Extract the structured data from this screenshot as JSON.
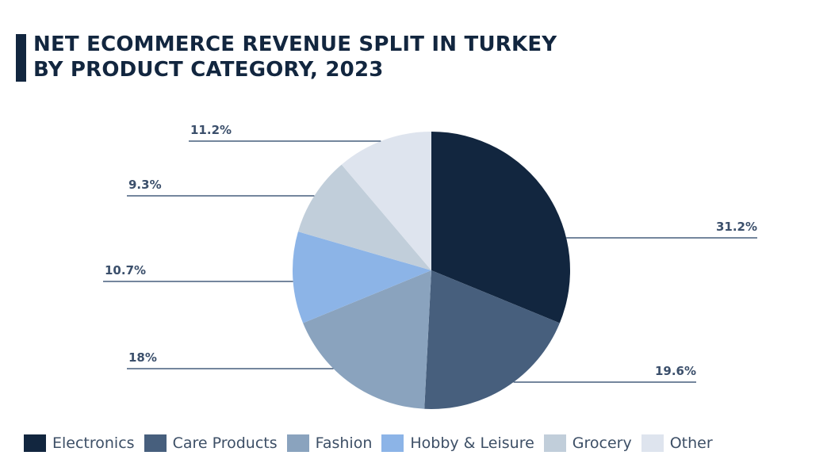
{
  "title": {
    "line1": "NET ECOMMERCE REVENUE SPLIT IN TURKEY",
    "line2": "BY PRODUCT CATEGORY, 2023"
  },
  "chart_data": {
    "type": "pie",
    "title": "Net ecommerce revenue split in Turkey by product category, 2023",
    "start": "12 o'clock",
    "direction": "clockwise",
    "legend": "bottom",
    "slices": [
      {
        "label": "Electronics",
        "value": 31.2,
        "display": "31.2%",
        "color": "#12263f"
      },
      {
        "label": "Care Products",
        "value": 19.6,
        "display": "19.6%",
        "color": "#475f7d"
      },
      {
        "label": "Fashion",
        "value": 18,
        "display": "18%",
        "color": "#8aa3be"
      },
      {
        "label": "Hobby & Leisure",
        "value": 10.7,
        "display": "10.7%",
        "color": "#8cb4e7"
      },
      {
        "label": "Grocery",
        "value": 9.3,
        "display": "9.3%",
        "color": "#c1ceda"
      },
      {
        "label": "Other",
        "value": 11.2,
        "display": "11.2%",
        "color": "#dee4ee"
      }
    ]
  }
}
